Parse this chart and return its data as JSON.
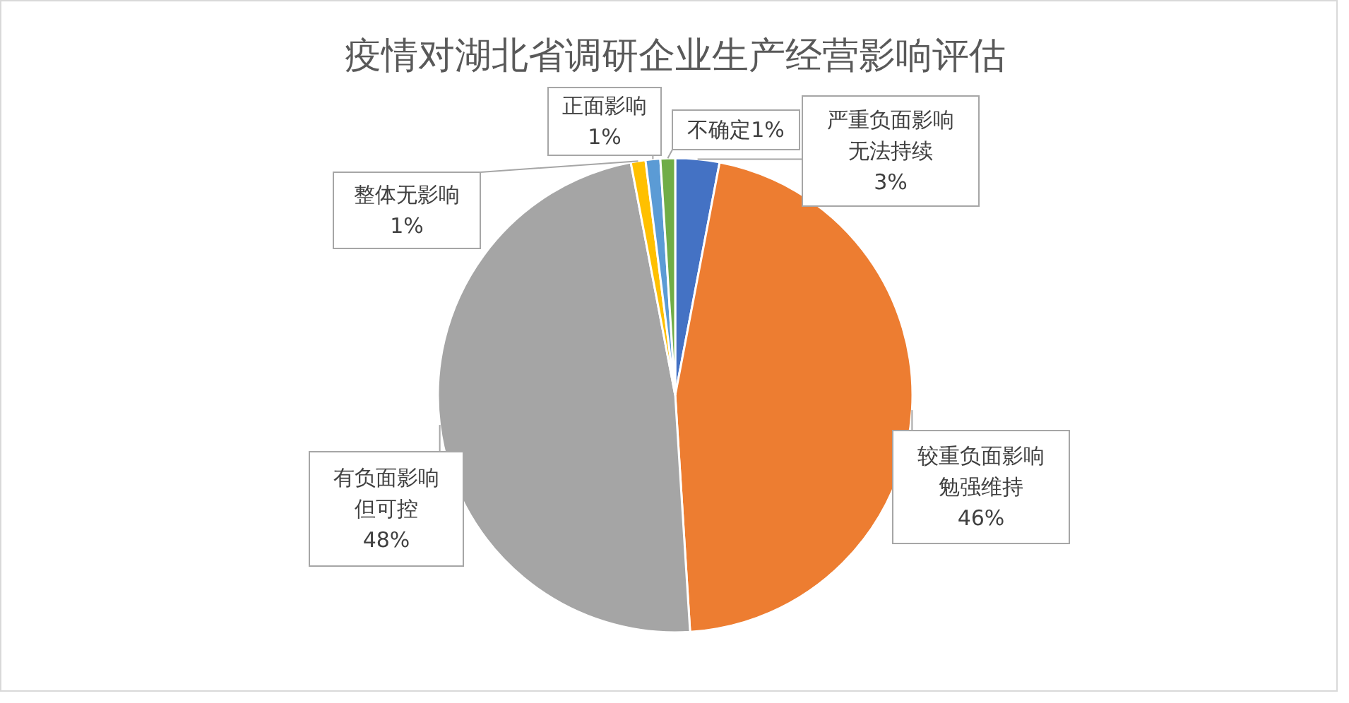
{
  "chart_data": {
    "type": "pie",
    "title": "疫情对湖北省调研企业生产经营影响评估",
    "categories": [
      "严重负面影响无法持续",
      "较重负面影响勉强维持",
      "有负面影响但可控",
      "整体无影响",
      "正面影响",
      "不确定"
    ],
    "values": [
      3,
      46,
      48,
      1,
      1,
      1
    ],
    "value_labels": [
      "3%",
      "46%",
      "48%",
      "1%",
      "1%",
      "1%"
    ],
    "colors": [
      "#4472c4",
      "#ed7d31",
      "#a5a5a5",
      "#ffc000",
      "#5b9bd5",
      "#70ad47"
    ],
    "legend": false
  }
}
